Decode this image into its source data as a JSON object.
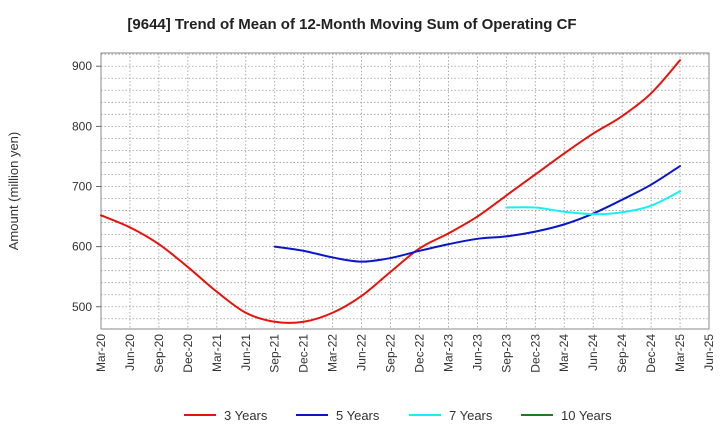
{
  "chart_data": {
    "type": "line",
    "title": "[9644]  Trend of Mean of 12-Month Moving Sum of Operating CF",
    "xlabel": "",
    "ylabel": "Amount (million yen)",
    "ylim": [
      463,
      922
    ],
    "yticks": [
      500,
      600,
      700,
      800,
      900
    ],
    "grid": true,
    "legend_position": "bottom",
    "categories": [
      "Mar-20",
      "Jun-20",
      "Sep-20",
      "Dec-20",
      "Mar-21",
      "Jun-21",
      "Sep-21",
      "Dec-21",
      "Mar-22",
      "Jun-22",
      "Sep-22",
      "Dec-22",
      "Mar-23",
      "Jun-23",
      "Sep-23",
      "Dec-23",
      "Mar-24",
      "Jun-24",
      "Sep-24",
      "Dec-24",
      "Mar-25",
      "Jun-25"
    ],
    "series": [
      {
        "name": "3 Years",
        "color": "#e8120c",
        "values": [
          652,
          632,
          604,
          566,
          525,
          490,
          475,
          475,
          490,
          518,
          558,
          597,
          622,
          650,
          685,
          720,
          755,
          788,
          817,
          855,
          910,
          null
        ]
      },
      {
        "name": "5 Years",
        "color": "#0a17c8",
        "values": [
          null,
          null,
          null,
          null,
          null,
          null,
          600,
          593,
          582,
          575,
          581,
          593,
          604,
          613,
          617,
          625,
          637,
          655,
          678,
          703,
          734,
          null
        ]
      },
      {
        "name": "7 Years",
        "color": "#15f0f5",
        "values": [
          null,
          null,
          null,
          null,
          null,
          null,
          null,
          null,
          null,
          null,
          null,
          null,
          null,
          null,
          665,
          665,
          658,
          654,
          657,
          668,
          692,
          null
        ]
      },
      {
        "name": "10 Years",
        "color": "#1e7d1e",
        "values": [
          null,
          null,
          null,
          null,
          null,
          null,
          null,
          null,
          null,
          null,
          null,
          null,
          null,
          null,
          null,
          null,
          null,
          null,
          null,
          null,
          null,
          null
        ]
      }
    ]
  }
}
